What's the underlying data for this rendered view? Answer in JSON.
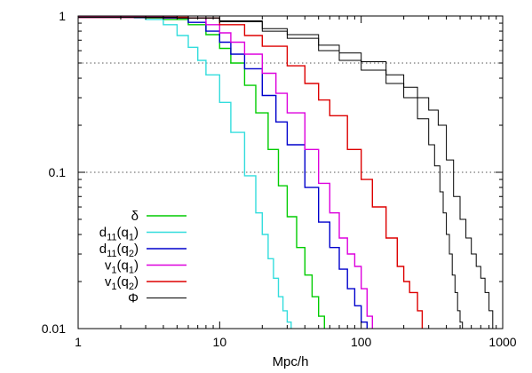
{
  "chart_data": {
    "type": "line",
    "title": "",
    "xlabel": "Mpc/h",
    "ylabel": "",
    "xscale": "log",
    "yscale": "log",
    "xlim": [
      1,
      1000
    ],
    "ylim": [
      0.01,
      1
    ],
    "x_ticks": [
      "1",
      "10",
      "100",
      "1000"
    ],
    "y_ticks": [
      "0.01",
      "0.1",
      "1"
    ],
    "reference_lines": [
      0.5,
      0.1
    ],
    "legend_placement": "bottom-left",
    "series": [
      {
        "name": "δ",
        "label_main": "δ",
        "label_sub": "",
        "label_tail": "",
        "color": "#00cc00",
        "x": [
          1,
          3,
          4,
          6,
          8,
          10,
          12,
          15,
          18,
          22,
          26,
          30,
          35,
          40,
          45,
          50,
          55
        ],
        "y": [
          0.98,
          0.97,
          0.95,
          0.88,
          0.76,
          0.62,
          0.5,
          0.36,
          0.24,
          0.14,
          0.082,
          0.052,
          0.033,
          0.022,
          0.016,
          0.012,
          0.0095
        ]
      },
      {
        "name": "d11(q1)",
        "label_main": "d",
        "label_sub": "11",
        "label_tail": "(q",
        "label_sub2": "1",
        "label_end": ")",
        "color": "#33dddd",
        "x": [
          1,
          2.5,
          3,
          4,
          5,
          6,
          7,
          8,
          10,
          12,
          15,
          18,
          20,
          22,
          24,
          26,
          28,
          30,
          32
        ],
        "y": [
          0.98,
          0.97,
          0.95,
          0.88,
          0.75,
          0.63,
          0.52,
          0.42,
          0.28,
          0.18,
          0.095,
          0.055,
          0.04,
          0.028,
          0.021,
          0.016,
          0.013,
          0.011,
          0.0095
        ]
      },
      {
        "name": "d11(q2)",
        "label_main": "d",
        "label_sub": "11",
        "label_tail": "(q",
        "label_sub2": "2",
        "label_end": ")",
        "color": "#0000cc",
        "x": [
          1,
          4,
          6,
          8,
          10,
          12,
          15,
          20,
          25,
          30,
          40,
          50,
          60,
          70,
          80,
          90,
          100,
          110
        ],
        "y": [
          0.98,
          0.97,
          0.91,
          0.8,
          0.68,
          0.57,
          0.46,
          0.31,
          0.21,
          0.15,
          0.08,
          0.048,
          0.033,
          0.024,
          0.018,
          0.014,
          0.011,
          0.0095
        ]
      },
      {
        "name": "v1(q1)",
        "label_main": "v",
        "label_sub": "1",
        "label_tail": "(q",
        "label_sub2": "1",
        "label_end": ")",
        "color": "#dd00dd",
        "x": [
          1,
          5,
          8,
          10,
          12,
          15,
          20,
          25,
          30,
          40,
          50,
          60,
          70,
          80,
          90,
          100,
          110,
          120
        ],
        "y": [
          0.98,
          0.97,
          0.88,
          0.78,
          0.68,
          0.57,
          0.43,
          0.32,
          0.24,
          0.14,
          0.085,
          0.055,
          0.038,
          0.03,
          0.025,
          0.018,
          0.012,
          0.0095
        ]
      },
      {
        "name": "v1(q2)",
        "label_main": "v",
        "label_sub": "1",
        "label_tail": "(q",
        "label_sub2": "2",
        "label_end": ")",
        "color": "#dd0000",
        "x": [
          1,
          6,
          10,
          15,
          20,
          30,
          40,
          50,
          60,
          80,
          100,
          120,
          150,
          180,
          200,
          220,
          250,
          270
        ],
        "y": [
          0.98,
          0.97,
          0.88,
          0.75,
          0.64,
          0.48,
          0.37,
          0.29,
          0.23,
          0.14,
          0.09,
          0.06,
          0.038,
          0.025,
          0.02,
          0.017,
          0.013,
          0.0095
        ]
      },
      {
        "name": "Φ (1)",
        "label_main": "Φ",
        "label_sub": "",
        "label_tail": "",
        "color": "#000000",
        "x": [
          1,
          5,
          10,
          20,
          30,
          50,
          70,
          100,
          150,
          200,
          250,
          300,
          330,
          360,
          380,
          400,
          420,
          440,
          460,
          480,
          500,
          520
        ],
        "y": [
          0.98,
          0.97,
          0.92,
          0.8,
          0.72,
          0.6,
          0.52,
          0.45,
          0.37,
          0.3,
          0.22,
          0.15,
          0.11,
          0.075,
          0.055,
          0.04,
          0.03,
          0.022,
          0.017,
          0.013,
          0.011,
          0.0095
        ]
      },
      {
        "name": "Φ (2)",
        "label_main": "",
        "label_sub": "",
        "label_tail": "",
        "color": "#000000",
        "x": [
          1,
          5,
          10,
          20,
          30,
          50,
          70,
          100,
          150,
          200,
          250,
          300,
          350,
          400,
          450,
          500,
          550,
          600,
          650,
          700,
          750,
          800,
          850
        ],
        "y": [
          0.98,
          0.97,
          0.93,
          0.83,
          0.76,
          0.65,
          0.58,
          0.51,
          0.42,
          0.35,
          0.3,
          0.25,
          0.2,
          0.12,
          0.07,
          0.05,
          0.038,
          0.03,
          0.025,
          0.021,
          0.017,
          0.013,
          0.0095
        ]
      }
    ]
  }
}
